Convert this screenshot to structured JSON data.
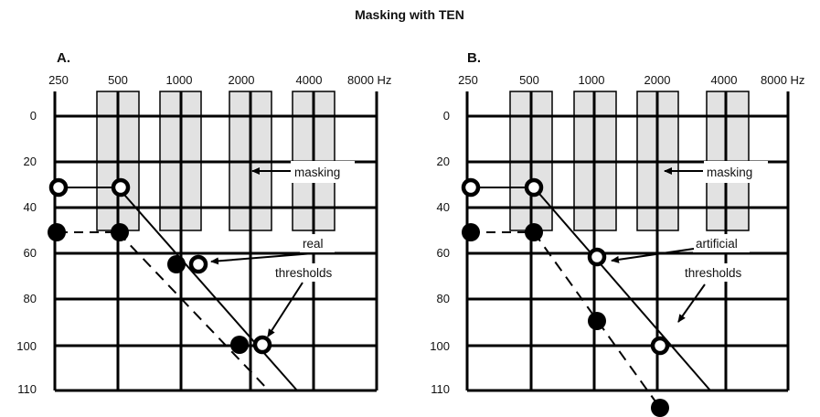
{
  "title": "Masking with TEN",
  "freq_labels": [
    "250",
    "500",
    "1000",
    "2000",
    "4000",
    "8000 Hz"
  ],
  "db_labels": [
    "0",
    "20",
    "40",
    "60",
    "80",
    "100",
    "110"
  ],
  "panels": [
    {
      "label": "A.",
      "annotations": {
        "masking": "masking",
        "real": "real",
        "thresholds": "thresholds"
      }
    },
    {
      "label": "B.",
      "annotations": {
        "masking": "masking",
        "artificial": "artificial",
        "thresholds": "thresholds"
      }
    }
  ],
  "colors": {
    "band_fill": "#e2e2e2",
    "ink": "#000000"
  }
}
